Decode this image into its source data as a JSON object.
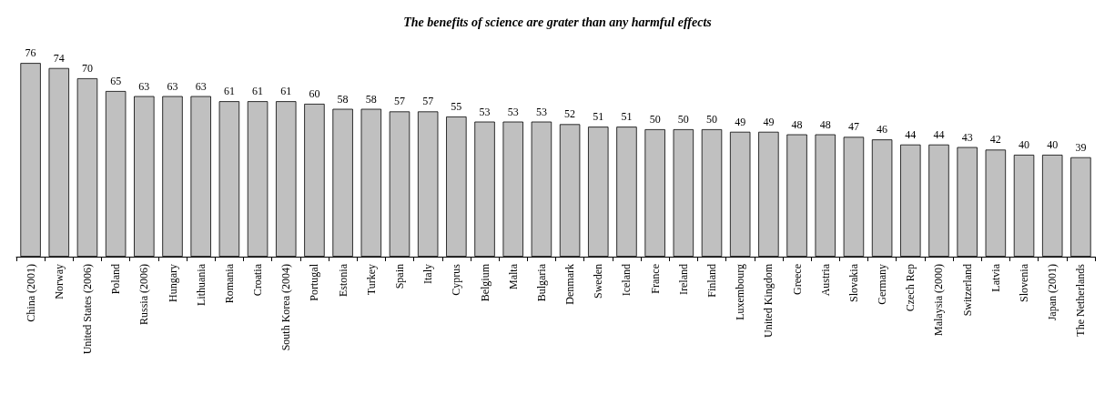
{
  "chart_data": {
    "type": "bar",
    "title": "The benefits of science are grater than any harmful effects",
    "categories": [
      "China (2001)",
      "Norway",
      "United States (2006)",
      "Poland",
      "Russia (2006)",
      "Hungary",
      "Lithuania",
      "Romania",
      "Croatia",
      "South Korea (2004)",
      "Portugal",
      "Estonia",
      "Turkey",
      "Spain",
      "Italy",
      "Cyprus",
      "Belgium",
      "Malta",
      "Bulgaria",
      "Denmark",
      "Sweden",
      "Iceland",
      "France",
      "Ireland",
      "Finland",
      "Luxembourg",
      "United Kingdom",
      "Greece",
      "Austria",
      "Slovakia",
      "Germany",
      "Czech Rep",
      "Malaysia (2000)",
      "Switzerland",
      "Latvia",
      "Slovenia",
      "Japan (2001)",
      "The Netherlands"
    ],
    "values": [
      76,
      74,
      70,
      65,
      63,
      63,
      63,
      61,
      61,
      61,
      60,
      58,
      58,
      57,
      57,
      55,
      53,
      53,
      53,
      52,
      51,
      51,
      50,
      50,
      50,
      49,
      49,
      48,
      48,
      47,
      46,
      44,
      44,
      43,
      42,
      40,
      40,
      39
    ],
    "color": "#c0c0c0",
    "data_labels": true
  }
}
